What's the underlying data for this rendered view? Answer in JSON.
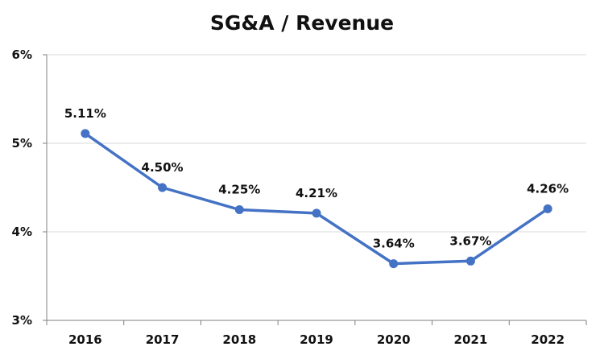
{
  "chart_data": {
    "type": "line",
    "title": "SG&A / Revenue",
    "xlabel": "",
    "ylabel": "",
    "categories": [
      "2016",
      "2017",
      "2018",
      "2019",
      "2020",
      "2021",
      "2022"
    ],
    "series": [
      {
        "values": [
          5.11,
          4.5,
          4.25,
          4.21,
          3.64,
          3.67,
          4.26
        ]
      }
    ],
    "data_labels": [
      "5.11%",
      "4.50%",
      "4.25%",
      "4.21%",
      "3.64%",
      "3.67%",
      "4.26%"
    ],
    "yticks": [
      3,
      4,
      5,
      6
    ],
    "ytick_labels": [
      "3%",
      "4%",
      "5%",
      "6%"
    ],
    "ylim": [
      3,
      6
    ],
    "grid": true,
    "legend": "none",
    "line_color": "#4472C4",
    "grid_color": "#d9d9d9"
  }
}
